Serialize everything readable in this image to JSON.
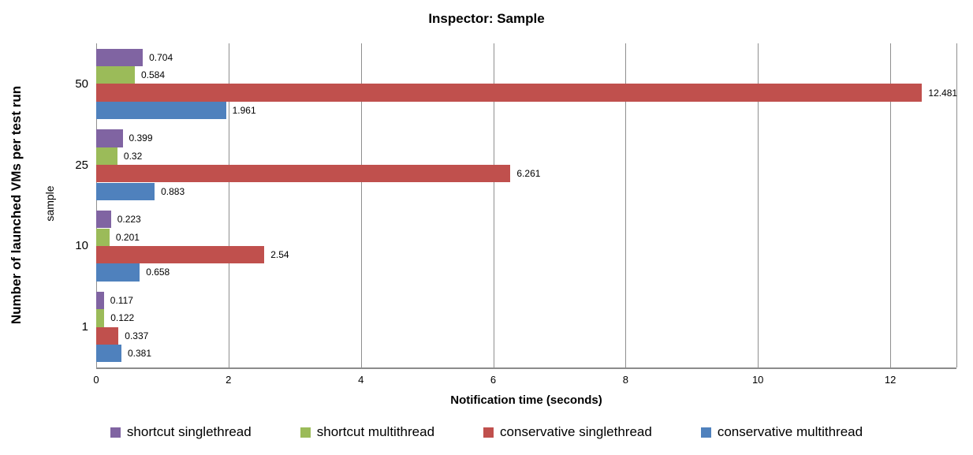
{
  "chart_data": {
    "type": "bar",
    "orientation": "horizontal",
    "title": "Inspector: Sample",
    "xlabel": "Notification time (seconds)",
    "ylabel": "Number of launched VMs per test run",
    "ylabel2": "sample",
    "categories": [
      "50",
      "25",
      "10",
      "1"
    ],
    "series": [
      {
        "name": "shortcut singlethread",
        "color": "#8064A2",
        "values": [
          0.704,
          0.399,
          0.223,
          0.117
        ]
      },
      {
        "name": "shortcut multithread",
        "color": "#9BBB59",
        "values": [
          0.584,
          0.32,
          0.201,
          0.122
        ]
      },
      {
        "name": "conservative singlethread",
        "color": "#C0504D",
        "values": [
          12.481,
          6.261,
          2.54,
          0.337
        ]
      },
      {
        "name": "conservative multithread",
        "color": "#4F81BD",
        "values": [
          1.961,
          0.883,
          0.658,
          0.381
        ]
      }
    ],
    "x_ticks": [
      0,
      2,
      4,
      6,
      8,
      10,
      12
    ],
    "xlim": [
      0,
      13
    ],
    "grid": "vertical",
    "legend_position": "bottom",
    "gridline_color": "#8f8f8f"
  }
}
